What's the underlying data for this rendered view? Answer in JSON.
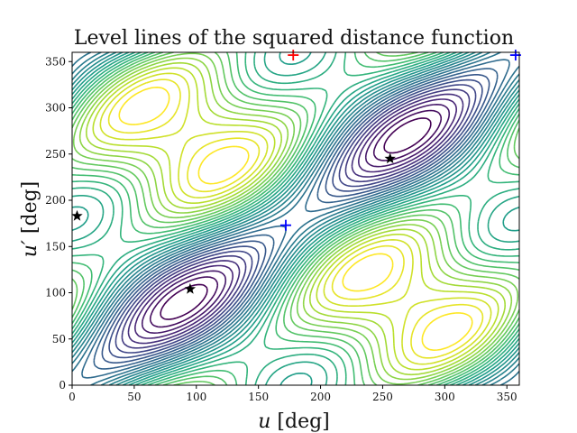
{
  "chart_data": {
    "type": "contour",
    "title": "Level lines of the squared distance function",
    "xlabel": "u",
    "xlabel_unit": "[deg]",
    "ylabel": "u′",
    "ylabel_unit": "[deg]",
    "xlim": [
      0,
      360
    ],
    "ylim": [
      0,
      360
    ],
    "xticks": [
      0,
      50,
      100,
      150,
      200,
      250,
      300,
      350
    ],
    "yticks": [
      0,
      50,
      100,
      150,
      200,
      250,
      300,
      350
    ],
    "grid": false,
    "colormap": "viridis",
    "markers": [
      {
        "kind": "star",
        "color": "#000000",
        "x": 4,
        "y": 183
      },
      {
        "kind": "star",
        "color": "#000000",
        "x": 95,
        "y": 104
      },
      {
        "kind": "star",
        "color": "#000000",
        "x": 256,
        "y": 245
      },
      {
        "kind": "plus",
        "color": "#0000ff",
        "x": 172,
        "y": 173
      },
      {
        "kind": "plus",
        "color": "#0000ff",
        "x": 357,
        "y": 357
      },
      {
        "kind": "plus",
        "color": "#ff0000",
        "x": 178,
        "y": 357
      }
    ]
  }
}
